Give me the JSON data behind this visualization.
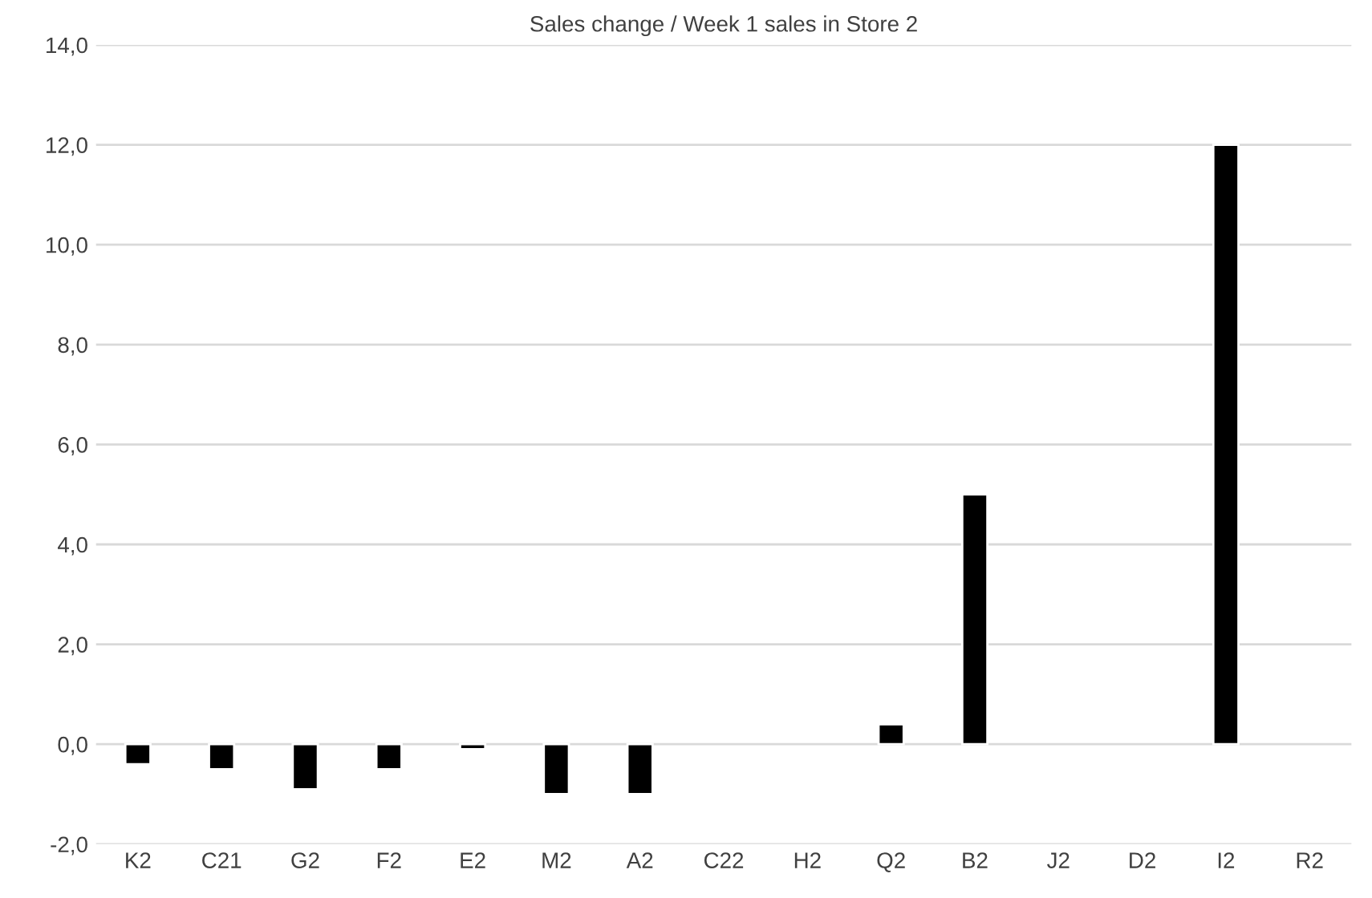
{
  "chart_data": {
    "type": "bar",
    "title": "Sales change / Week 1 sales in Store 2",
    "categories": [
      "K2",
      "C21",
      "G2",
      "F2",
      "E2",
      "M2",
      "A2",
      "C22",
      "H2",
      "Q2",
      "B2",
      "J2",
      "D2",
      "I2",
      "R2"
    ],
    "values": [
      -0.4,
      -0.5,
      -0.9,
      -0.5,
      -0.1,
      -1.0,
      -1.0,
      null,
      null,
      0.4,
      5.0,
      null,
      null,
      12.0,
      null
    ],
    "color": "#000000",
    "ylim": [
      -2,
      14
    ],
    "yticks": [
      {
        "value": -2,
        "label": "-2,0"
      },
      {
        "value": 0,
        "label": "0,0"
      },
      {
        "value": 2,
        "label": "2,0"
      },
      {
        "value": 4,
        "label": "4,0"
      },
      {
        "value": 6,
        "label": "6,0"
      },
      {
        "value": 8,
        "label": "8,0"
      },
      {
        "value": 10,
        "label": "10,0"
      },
      {
        "value": 12,
        "label": "12,0"
      },
      {
        "value": 14,
        "label": "14,0"
      }
    ],
    "grid": "y"
  }
}
